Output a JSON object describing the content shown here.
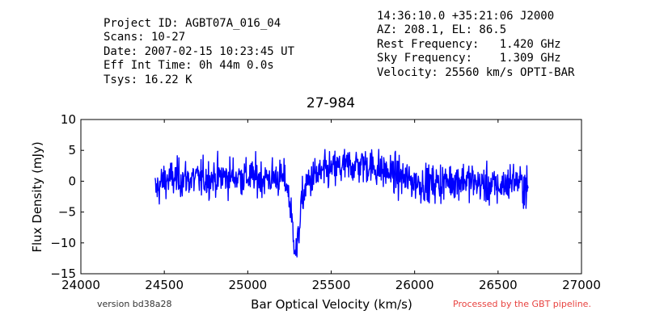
{
  "header": {
    "left_lines": [
      "Project ID: AGBT07A_016_04",
      "Scans: 10-27",
      "Date: 2007-02-15 10:23:45 UT",
      "Eff Int Time: 0h 44m 0.0s",
      "Tsys: 16.22 K"
    ],
    "right_lines": [
      "14:36:10.0 +35:21:06 J2000",
      "AZ: 208.1, EL: 86.5",
      "Rest Frequency:   1.420 GHz",
      "Sky Frequency:    1.309 GHz",
      "Velocity: 25560 km/s OPTI-BAR"
    ]
  },
  "footer": {
    "version": "version bd38a28",
    "pipeline": "Processed by the GBT pipeline.",
    "pipeline_color": "#e8423f"
  },
  "chart_data": {
    "type": "line",
    "title": "27-984",
    "xlabel": "Bar Optical Velocity (km/s)",
    "ylabel": "Flux Density (mJy)",
    "xlim": [
      24000,
      27000
    ],
    "ylim": [
      -15,
      10
    ],
    "x_ticks": [
      24000,
      24500,
      25000,
      25500,
      26000,
      26500,
      27000
    ],
    "y_ticks": [
      -15,
      -10,
      -5,
      0,
      5,
      10
    ],
    "x_tick_labels": [
      "24000",
      "24500",
      "25000",
      "25500",
      "26000",
      "26500",
      "27000"
    ],
    "y_tick_labels": [
      "−15",
      "−10",
      "−5",
      "0",
      "5",
      "10"
    ],
    "grid": false,
    "line_color": "#0000ff",
    "series": [
      {
        "x_range": [
          24445,
          26680
        ],
        "noise_rms": 1.8,
        "points": [
          [
            24445,
            -1.5
          ],
          [
            24500,
            0.2
          ],
          [
            24600,
            0.5
          ],
          [
            24700,
            0.3
          ],
          [
            24800,
            0.6
          ],
          [
            24900,
            0.8
          ],
          [
            25000,
            0.7
          ],
          [
            25100,
            0.5
          ],
          [
            25180,
            0.6
          ],
          [
            25230,
            0.0
          ],
          [
            25250,
            -3.0
          ],
          [
            25270,
            -8.0
          ],
          [
            25285,
            -10.5
          ],
          [
            25295,
            -11.5
          ],
          [
            25305,
            -8.5
          ],
          [
            25320,
            -4.0
          ],
          [
            25350,
            -0.5
          ],
          [
            25400,
            0.8
          ],
          [
            25500,
            1.8
          ],
          [
            25600,
            2.5
          ],
          [
            25700,
            2.8
          ],
          [
            25800,
            1.8
          ],
          [
            25900,
            0.8
          ],
          [
            26000,
            -0.2
          ],
          [
            26100,
            -0.4
          ],
          [
            26200,
            0.0
          ],
          [
            26300,
            0.3
          ],
          [
            26400,
            -0.5
          ],
          [
            26500,
            -1.0
          ],
          [
            26600,
            0.3
          ],
          [
            26680,
            -1.2
          ]
        ]
      }
    ]
  }
}
